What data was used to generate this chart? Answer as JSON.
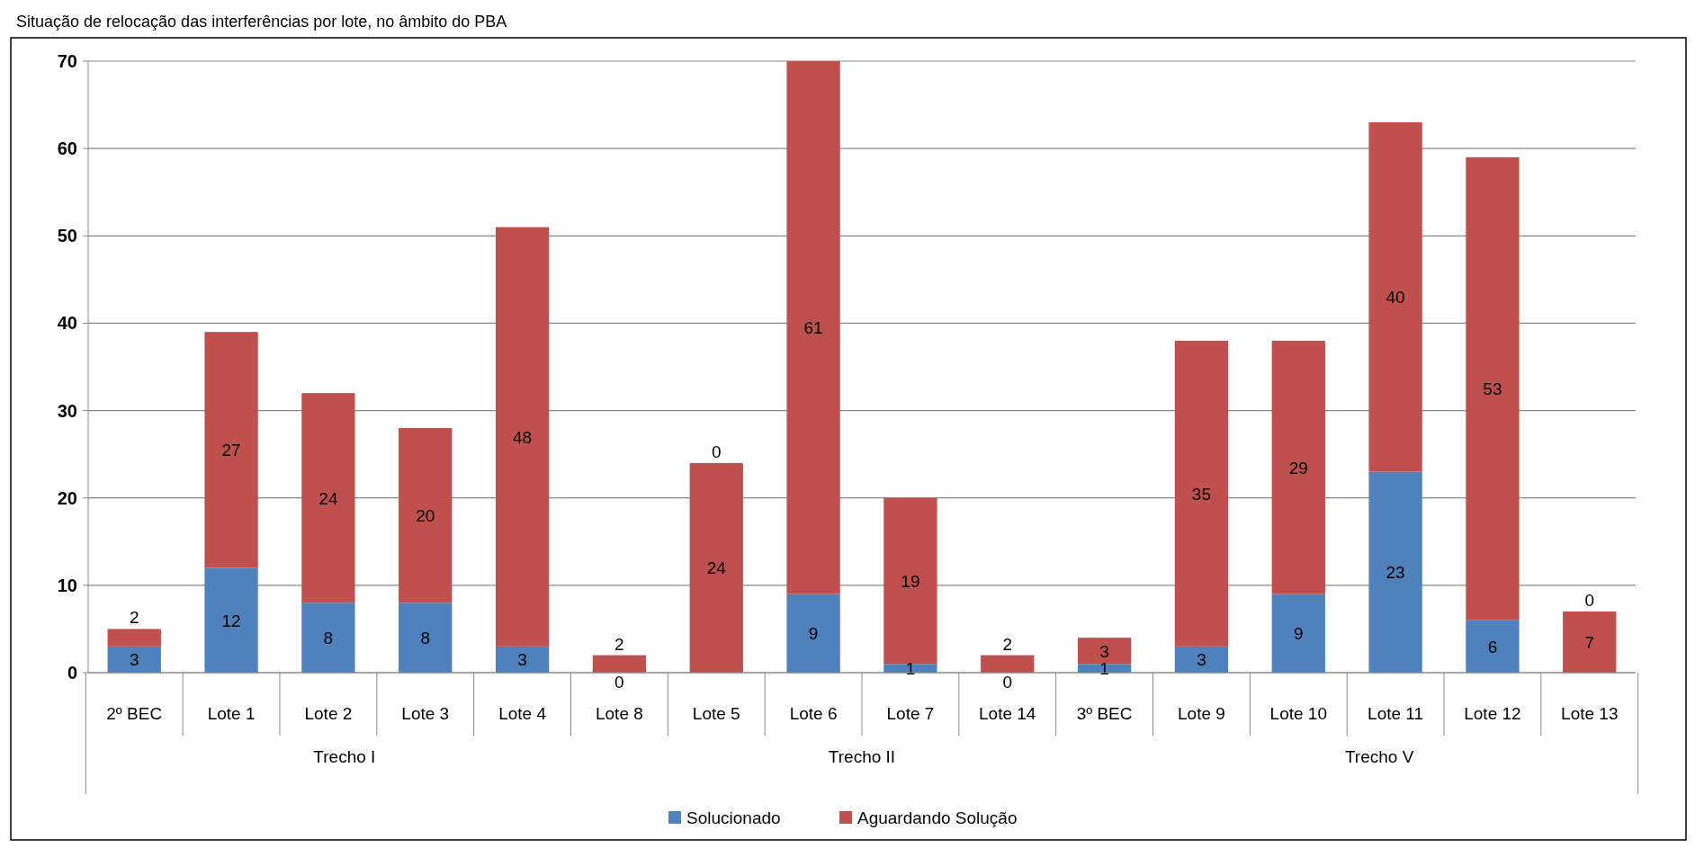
{
  "chart_data": {
    "type": "bar",
    "stacked": true,
    "title": "Situação de relocação das interferências por lote, no âmbito do PBA",
    "categories": [
      "2º BEC",
      "Lote 1",
      "Lote 2",
      "Lote 3",
      "Lote 4",
      "Lote 8",
      "Lote 5",
      "Lote 6",
      "Lote 7",
      "Lote 14",
      "3º BEC",
      "Lote 9",
      "Lote 10",
      "Lote 11",
      "Lote 12",
      "Lote 13"
    ],
    "series": [
      {
        "name": "Solucionado",
        "color": "#4f81bd",
        "values": [
          3,
          12,
          8,
          8,
          3,
          0,
          0,
          9,
          1,
          0,
          1,
          3,
          9,
          23,
          6,
          0
        ]
      },
      {
        "name": "Aguardando Solução",
        "color": "#c0504d",
        "values": [
          2,
          27,
          24,
          20,
          48,
          2,
          24,
          61,
          19,
          2,
          3,
          35,
          29,
          40,
          53,
          7
        ]
      }
    ],
    "annotations": [
      "Trecho I",
      "Trecho II",
      "Trecho V"
    ],
    "ylim": [
      0,
      70
    ],
    "yticks": [
      0,
      10,
      20,
      30,
      40,
      50,
      60,
      70
    ],
    "grid": "y",
    "legend": "bottom",
    "data_labels": true
  }
}
